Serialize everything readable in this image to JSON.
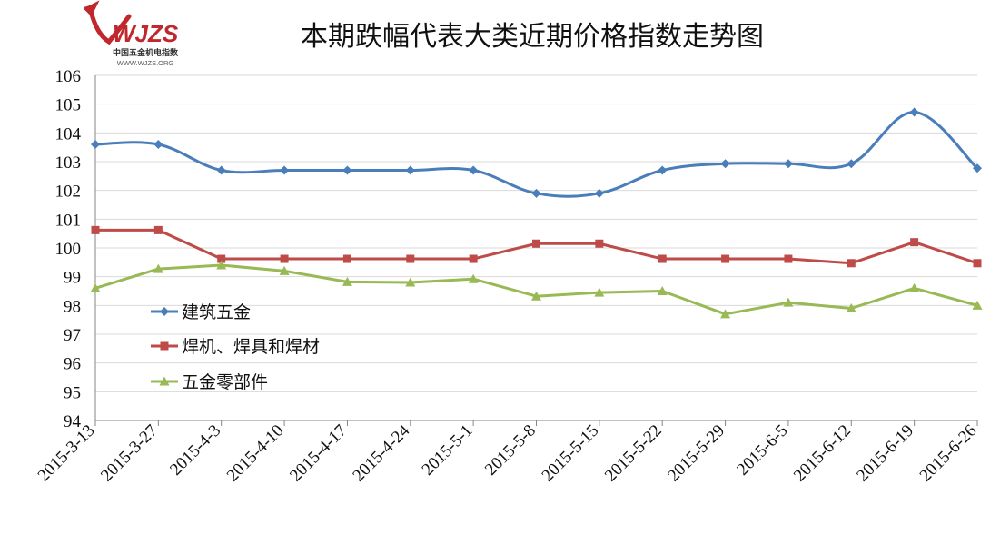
{
  "logo": {
    "mark": "WJZS",
    "subtitle": "中国五金机电指数",
    "url": "WWW.WJZS.ORG"
  },
  "colors": {
    "series1": "#4a7ebb",
    "series2": "#be4b48",
    "series3": "#98b954",
    "grid": "#d9d9d9",
    "axis": "#868686",
    "logo_red": "#c0282d"
  },
  "chart_data": {
    "type": "line",
    "title": "本期跌幅代表大类近期价格指数走势图",
    "xlabel": "",
    "ylabel": "",
    "ylim": [
      94,
      106
    ],
    "yticks": [
      94,
      95,
      96,
      97,
      98,
      99,
      100,
      101,
      102,
      103,
      104,
      105,
      106
    ],
    "grid": true,
    "legend_position": "left-middle",
    "categories": [
      "2015-3-13",
      "2015-3-27",
      "2015-4-3",
      "2015-4-10",
      "2015-4-17",
      "2015-4-24",
      "2015-5-1",
      "2015-5-8",
      "2015-5-15",
      "2015-5-22",
      "2015-5-29",
      "2015-6-5",
      "2015-6-12",
      "2015-6-19",
      "2015-6-26"
    ],
    "series": [
      {
        "name": "建筑五金",
        "marker": "diamond",
        "smooth": true,
        "values": [
          103.6,
          103.6,
          102.7,
          102.7,
          102.7,
          102.7,
          102.7,
          101.9,
          101.9,
          102.7,
          102.93,
          102.93,
          102.93,
          104.72,
          102.77
        ]
      },
      {
        "name": "焊机、焊具和焊材",
        "marker": "square",
        "smooth": false,
        "values": [
          100.62,
          100.62,
          99.62,
          99.62,
          99.62,
          99.62,
          99.62,
          100.15,
          100.15,
          99.62,
          99.62,
          99.62,
          99.47,
          100.2,
          99.47
        ]
      },
      {
        "name": "五金零部件",
        "marker": "triangle",
        "smooth": false,
        "values": [
          98.6,
          99.27,
          99.4,
          99.2,
          98.82,
          98.8,
          98.92,
          98.32,
          98.45,
          98.5,
          97.7,
          98.1,
          97.9,
          98.6,
          98.0
        ]
      }
    ]
  }
}
